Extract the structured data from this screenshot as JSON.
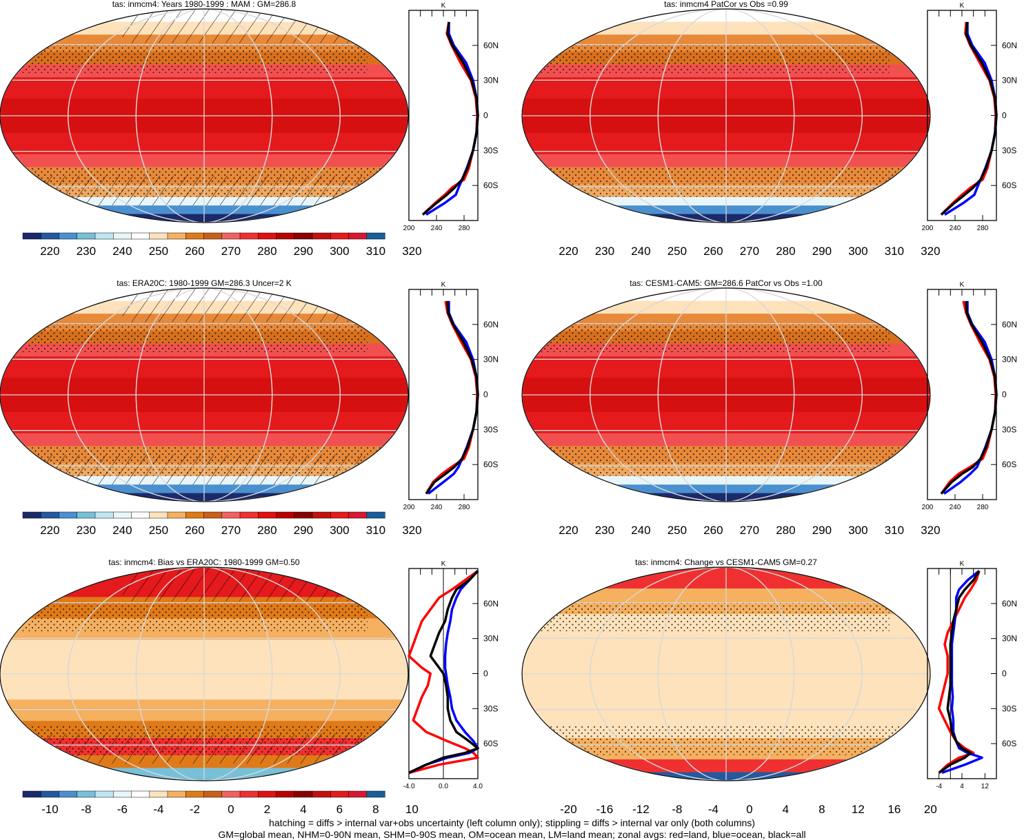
{
  "chart_data": [
    {
      "type": "heatmap",
      "title": "tas: inmcm4: Years 1980-1999 : MAM : GM=286.8",
      "colorbar_ticks": [
        "220",
        "230",
        "240",
        "250",
        "260",
        "270",
        "280",
        "290",
        "300",
        "310",
        "320"
      ],
      "zonal_profile": {
        "unit": "K",
        "x_ticks": [
          "200",
          "240",
          "280"
        ],
        "xlim": [
          200,
          300
        ],
        "y_ticks": [
          "60N",
          "30N",
          "0",
          "30S",
          "60S"
        ],
        "ylim": [
          -90,
          90
        ],
        "lat": [
          80,
          70,
          60,
          45,
          30,
          15,
          0,
          -15,
          -30,
          -45,
          -55,
          -62,
          -68,
          -75,
          -85
        ],
        "series": [
          {
            "name": "land",
            "color": "#ff0000",
            "values": [
              258,
              255,
              262,
              275,
              290,
              297,
              299,
              298,
              293,
              287,
              280,
              262,
              252,
              238,
              220
            ]
          },
          {
            "name": "ocean",
            "color": "#0000ff",
            "values": [
              258,
              258,
              265,
              283,
              293,
              298,
              300,
              298,
              293,
              284,
              277,
              272,
              268,
              252,
              225
            ]
          },
          {
            "name": "all",
            "color": "#000000",
            "values": [
              258,
              256,
              263,
              279,
              291,
              298,
              300,
              298,
              293,
              285,
              277,
              266,
              255,
              240,
              220
            ]
          }
        ]
      }
    },
    {
      "type": "heatmap",
      "title": "tas: inmcm4 PatCor vs Obs =0.99",
      "colorbar_ticks": [
        "220",
        "230",
        "240",
        "250",
        "260",
        "270",
        "280",
        "290",
        "300",
        "310",
        "320"
      ],
      "zonal_profile": {
        "unit": "K",
        "x_ticks": [
          "200",
          "240",
          "280"
        ],
        "xlim": [
          200,
          300
        ],
        "y_ticks": [
          "60N",
          "30N",
          "0",
          "30S",
          "60S"
        ],
        "ylim": [
          -90,
          90
        ],
        "lat": [
          80,
          70,
          60,
          45,
          30,
          15,
          0,
          -15,
          -30,
          -45,
          -55,
          -62,
          -68,
          -75,
          -85
        ],
        "series": [
          {
            "name": "land",
            "color": "#ff0000",
            "values": [
              256,
              255,
              262,
              276,
              290,
              297,
              299,
              298,
              293,
              287,
              280,
              262,
              250,
              237,
              220
            ]
          },
          {
            "name": "ocean",
            "color": "#0000ff",
            "values": [
              258,
              258,
              265,
              283,
              293,
              298,
              300,
              298,
              293,
              284,
              277,
              272,
              268,
              252,
              225
            ]
          },
          {
            "name": "all",
            "color": "#000000",
            "values": [
              258,
              256,
              263,
              279,
              291,
              298,
              300,
              298,
              293,
              285,
              277,
              266,
              254,
              239,
              220
            ]
          }
        ]
      }
    },
    {
      "type": "heatmap",
      "title": "tas: ERA20C: 1980-1999 GM=286.3 Uncer=2 K",
      "colorbar_ticks": [
        "220",
        "230",
        "240",
        "250",
        "260",
        "270",
        "280",
        "290",
        "300",
        "310",
        "320"
      ],
      "zonal_profile": {
        "unit": "K",
        "x_ticks": [
          "200",
          "240",
          "280"
        ],
        "xlim": [
          200,
          300
        ],
        "y_ticks": [
          "60N",
          "30N",
          "0",
          "30S",
          "60S"
        ],
        "ylim": [
          -90,
          90
        ],
        "lat": [
          80,
          70,
          60,
          45,
          30,
          15,
          0,
          -15,
          -30,
          -45,
          -55,
          -62,
          -68,
          -75,
          -85
        ],
        "series": [
          {
            "name": "land",
            "color": "#ff0000",
            "values": [
              253,
              256,
              263,
              276,
              290,
              297,
              299,
              298,
              293,
              287,
              280,
              262,
              248,
              235,
              225
            ]
          },
          {
            "name": "ocean",
            "color": "#0000ff",
            "values": [
              258,
              258,
              265,
              283,
              293,
              298,
              300,
              298,
              293,
              284,
              277,
              272,
              265,
              250,
              228
            ]
          },
          {
            "name": "all",
            "color": "#000000",
            "values": [
              256,
              257,
              264,
              279,
              291,
              298,
              300,
              298,
              293,
              285,
              277,
              266,
              253,
              237,
              225
            ]
          }
        ]
      }
    },
    {
      "type": "heatmap",
      "title": "tas: CESM1-CAM5: GM=286.6 PatCor vs Obs =1.00",
      "colorbar_ticks": [
        "220",
        "230",
        "240",
        "250",
        "260",
        "270",
        "280",
        "290",
        "300",
        "310",
        "320"
      ],
      "zonal_profile": {
        "unit": "K",
        "x_ticks": [
          "200",
          "240",
          "280"
        ],
        "xlim": [
          200,
          300
        ],
        "y_ticks": [
          "60N",
          "30N",
          "0",
          "30S",
          "60S"
        ],
        "ylim": [
          -90,
          90
        ],
        "lat": [
          80,
          70,
          60,
          45,
          30,
          15,
          0,
          -15,
          -30,
          -45,
          -55,
          -62,
          -68,
          -75,
          -85
        ],
        "series": [
          {
            "name": "land",
            "color": "#ff0000",
            "values": [
              252,
              256,
              263,
              276,
              290,
              297,
              299,
              298,
              293,
              287,
              280,
              262,
              245,
              232,
              220
            ]
          },
          {
            "name": "ocean",
            "color": "#0000ff",
            "values": [
              258,
              258,
              265,
              283,
              293,
              298,
              300,
              298,
              293,
              284,
              277,
              272,
              262,
              248,
              224
            ]
          },
          {
            "name": "all",
            "color": "#000000",
            "values": [
              256,
              257,
              264,
              279,
              291,
              298,
              300,
              298,
              293,
              285,
              277,
              266,
              250,
              235,
              220
            ]
          }
        ]
      }
    },
    {
      "type": "heatmap",
      "title": "tas: inmcm4: Bias vs ERA20C: 1980-1999 GM=0.50",
      "colorbar_ticks": [
        "-10",
        "-8",
        "-6",
        "-4",
        "-2",
        "0",
        "2",
        "4",
        "6",
        "8",
        "10"
      ],
      "zonal_profile": {
        "unit": "K",
        "x_ticks": [
          "-4.0",
          "0.0",
          "4.0"
        ],
        "xlim": [
          -4,
          4
        ],
        "y_ticks": [
          "60N",
          "30N",
          "0",
          "30S",
          "60S"
        ],
        "ylim": [
          -90,
          90
        ],
        "lat": [
          88,
          80,
          72,
          65,
          55,
          45,
          35,
          25,
          15,
          5,
          0,
          -10,
          -20,
          -30,
          -40,
          -50,
          -58,
          -64,
          -68,
          -72,
          -78,
          -85
        ],
        "series": [
          {
            "name": "land",
            "color": "#ff0000",
            "values": [
              4.0,
              2.5,
              1.0,
              -0.5,
              -1.5,
              -2.5,
              -3.0,
              -3.5,
              -4.0,
              -2.5,
              -1.5,
              -1.8,
              -2.5,
              -3.0,
              -3.5,
              -2.0,
              0.5,
              2.5,
              3.5,
              4.0,
              -0.5,
              -4.0
            ]
          },
          {
            "name": "ocean",
            "color": "#0000ff",
            "values": [
              4.0,
              3.0,
              2.0,
              1.5,
              1.0,
              0.8,
              0.5,
              0.3,
              0.2,
              0.2,
              0.3,
              0.5,
              0.8,
              1.0,
              1.5,
              2.5,
              3.5,
              4.0,
              3.0,
              0.5,
              -2.0,
              -4.0
            ]
          },
          {
            "name": "all",
            "color": "#000000",
            "values": [
              4.0,
              3.0,
              1.5,
              1.0,
              0.5,
              0.2,
              -0.5,
              -1.0,
              -1.5,
              -0.5,
              0.0,
              0.3,
              0.5,
              0.5,
              0.8,
              1.5,
              3.0,
              4.0,
              2.5,
              0.0,
              -2.0,
              -4.0
            ]
          }
        ]
      }
    },
    {
      "type": "heatmap",
      "title": "tas: inmcm4: Change vs CESM1-CAM5 GM=0.27",
      "colorbar_ticks": [
        "-20",
        "-16",
        "-12",
        "-8",
        "-4",
        "0",
        "4",
        "8",
        "12",
        "16",
        "20"
      ],
      "zonal_profile": {
        "unit": "K",
        "x_ticks": [
          "-4",
          "4",
          "12"
        ],
        "xlim": [
          -8,
          16
        ],
        "y_ticks": [
          "60N",
          "30N",
          "0",
          "30S",
          "60S"
        ],
        "ylim": [
          -90,
          90
        ],
        "lat": [
          88,
          80,
          72,
          65,
          55,
          45,
          35,
          25,
          15,
          5,
          0,
          -10,
          -20,
          -30,
          -40,
          -50,
          -58,
          -64,
          -68,
          -72,
          -78,
          -85
        ],
        "series": [
          {
            "name": "land",
            "color": "#ff0000",
            "values": [
              10,
              9,
              7,
              5,
              3,
              1,
              -1,
              -2,
              -1,
              -1,
              -1,
              -2,
              -3,
              -4,
              -2,
              0,
              2,
              5,
              8,
              3,
              -1,
              -4
            ]
          },
          {
            "name": "ocean",
            "color": "#0000ff",
            "values": [
              10,
              6,
              3,
              2,
              2,
              1.5,
              1,
              0.5,
              0.5,
              0.5,
              0.5,
              0.5,
              0.8,
              0.5,
              1,
              1,
              2,
              3,
              6,
              11,
              5,
              -3
            ]
          },
          {
            "name": "all",
            "color": "#000000",
            "values": [
              10,
              8,
              5,
              3,
              2,
              1,
              0.5,
              0,
              0,
              0,
              0,
              0,
              -0.5,
              -1,
              0,
              0.5,
              2,
              4,
              7,
              5,
              0,
              -4
            ]
          }
        ]
      }
    }
  ],
  "colorbar_colors": [
    "#1b2a6b",
    "#2359a0",
    "#4a90d0",
    "#78c0d8",
    "#bfe6f0",
    "#e8f6fa",
    "#ffffff",
    "#fde2bb",
    "#f5b060",
    "#e07a18",
    "#c8601a",
    "#f36060",
    "#f03030",
    "#e01010",
    "#b80000",
    "#8a0000",
    "#c21010",
    "#e41a1c",
    "#d81830",
    "#1a5e9a"
  ],
  "footer": {
    "line1": "hatching = diffs > internal var+obs uncertainty (left column only); stippling = diffs > internal var only (both columns)",
    "line2": "GM=global mean, NHM=0-90N mean, SHM=0-90S mean, OM=ocean mean, LM=land mean; zonal avgs: red=land, blue=ocean, black=all"
  }
}
